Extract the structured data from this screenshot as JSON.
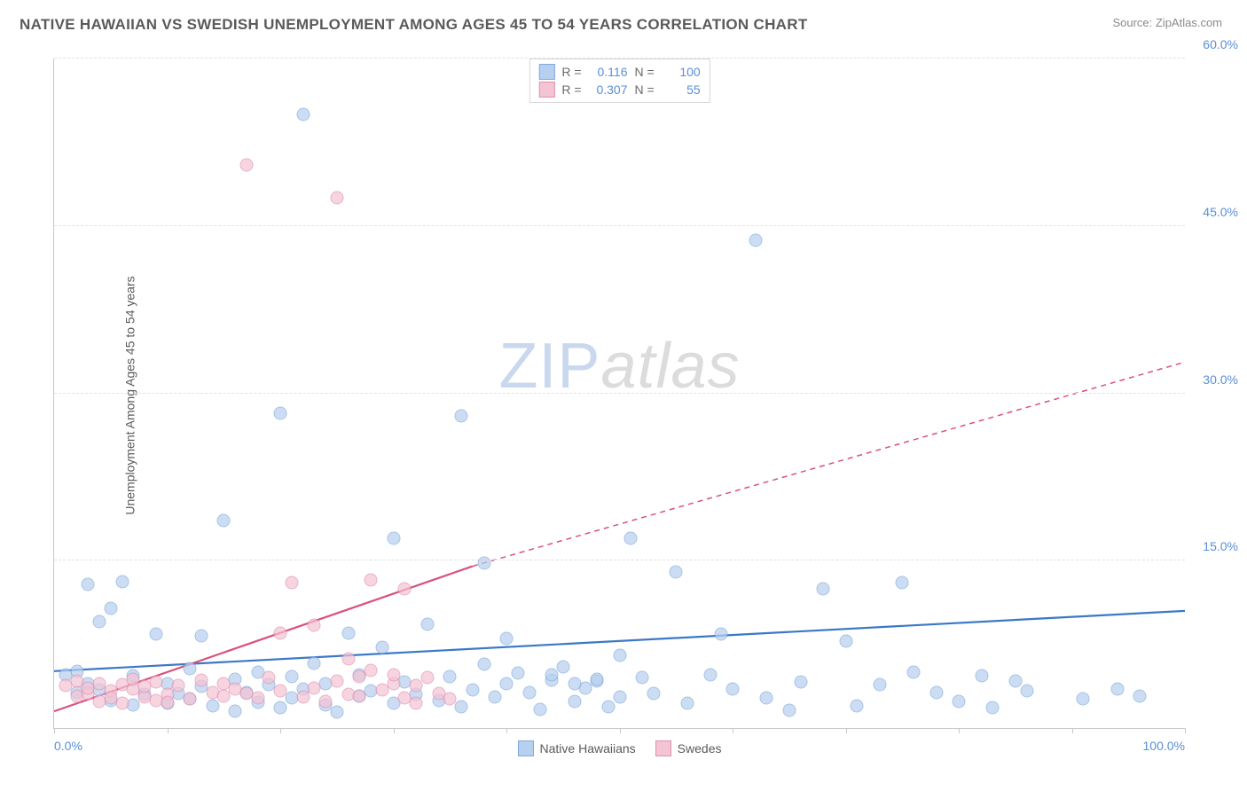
{
  "header": {
    "title": "NATIVE HAWAIIAN VS SWEDISH UNEMPLOYMENT AMONG AGES 45 TO 54 YEARS CORRELATION CHART",
    "source": "Source: ZipAtlas.com"
  },
  "chart": {
    "type": "scatter",
    "y_label": "Unemployment Among Ages 45 to 54 years",
    "xlim": [
      0,
      100
    ],
    "ylim": [
      0,
      60
    ],
    "x_ticks": [
      0,
      10,
      20,
      30,
      40,
      50,
      60,
      70,
      80,
      90,
      100
    ],
    "x_tick_labels": {
      "0": "0.0%",
      "100": "100.0%"
    },
    "y_grid": [
      15,
      30,
      45,
      60
    ],
    "y_tick_labels": [
      "15.0%",
      "30.0%",
      "45.0%",
      "60.0%"
    ],
    "background_color": "#ffffff",
    "grid_color": "#e2e2e2",
    "axis_color": "#c9c9c9",
    "marker_radius": 7.5,
    "marker_opacity": 0.7,
    "series": [
      {
        "name": "Native Hawaiians",
        "fill": "#b7d0ef",
        "stroke": "#7faade",
        "line_color": "#3b78c7",
        "R": "0.116",
        "N": "100",
        "trend": {
          "x1": 0,
          "y1": 5.1,
          "x2": 100,
          "y2": 10.5
        },
        "points": [
          [
            1,
            4.8
          ],
          [
            2,
            3.2
          ],
          [
            2,
            5.1
          ],
          [
            3,
            12.9
          ],
          [
            3,
            4.0
          ],
          [
            4,
            9.5
          ],
          [
            4,
            3.4
          ],
          [
            5,
            10.7
          ],
          [
            5,
            2.5
          ],
          [
            6,
            13.1
          ],
          [
            7,
            4.7
          ],
          [
            7,
            2.1
          ],
          [
            8,
            3.0
          ],
          [
            9,
            8.4
          ],
          [
            10,
            4.0
          ],
          [
            10,
            2.2
          ],
          [
            11,
            3.1
          ],
          [
            12,
            2.6
          ],
          [
            12,
            5.3
          ],
          [
            13,
            8.3
          ],
          [
            13,
            3.7
          ],
          [
            14,
            2.0
          ],
          [
            15,
            18.6
          ],
          [
            16,
            1.5
          ],
          [
            16,
            4.4
          ],
          [
            17,
            3.2
          ],
          [
            18,
            2.3
          ],
          [
            18,
            5.0
          ],
          [
            19,
            3.9
          ],
          [
            20,
            28.2
          ],
          [
            20,
            1.8
          ],
          [
            21,
            4.6
          ],
          [
            21,
            2.7
          ],
          [
            22,
            55.0
          ],
          [
            22,
            3.5
          ],
          [
            23,
            5.8
          ],
          [
            24,
            2.1
          ],
          [
            24,
            4.0
          ],
          [
            25,
            1.4
          ],
          [
            26,
            8.5
          ],
          [
            27,
            2.9
          ],
          [
            27,
            4.8
          ],
          [
            28,
            3.3
          ],
          [
            29,
            7.2
          ],
          [
            30,
            17.0
          ],
          [
            30,
            2.2
          ],
          [
            31,
            4.1
          ],
          [
            32,
            3.0
          ],
          [
            33,
            9.3
          ],
          [
            34,
            2.5
          ],
          [
            35,
            4.6
          ],
          [
            36,
            28.0
          ],
          [
            36,
            1.9
          ],
          [
            37,
            3.4
          ],
          [
            38,
            5.7
          ],
          [
            39,
            2.8
          ],
          [
            40,
            8.0
          ],
          [
            40,
            4.0
          ],
          [
            41,
            4.9
          ],
          [
            42,
            3.2
          ],
          [
            43,
            1.7
          ],
          [
            44,
            4.3
          ],
          [
            45,
            5.5
          ],
          [
            46,
            2.4
          ],
          [
            47,
            3.6
          ],
          [
            48,
            4.2
          ],
          [
            49,
            1.9
          ],
          [
            50,
            2.8
          ],
          [
            51,
            17.0
          ],
          [
            52,
            4.5
          ],
          [
            53,
            3.1
          ],
          [
            55,
            14.0
          ],
          [
            56,
            2.2
          ],
          [
            58,
            4.8
          ],
          [
            59,
            8.4
          ],
          [
            60,
            3.5
          ],
          [
            62,
            43.7
          ],
          [
            63,
            2.7
          ],
          [
            65,
            1.6
          ],
          [
            66,
            4.1
          ],
          [
            68,
            12.5
          ],
          [
            70,
            7.8
          ],
          [
            71,
            2.0
          ],
          [
            73,
            3.9
          ],
          [
            75,
            13.0
          ],
          [
            76,
            5.0
          ],
          [
            78,
            3.2
          ],
          [
            80,
            2.4
          ],
          [
            82,
            4.7
          ],
          [
            83,
            1.8
          ],
          [
            85,
            4.2
          ],
          [
            86,
            3.3
          ],
          [
            91,
            2.6
          ],
          [
            94,
            3.5
          ],
          [
            96,
            2.9
          ],
          [
            38,
            14.8
          ],
          [
            44,
            4.8
          ],
          [
            46,
            4.0
          ],
          [
            48,
            4.4
          ],
          [
            50,
            6.5
          ]
        ]
      },
      {
        "name": "Swedes",
        "fill": "#f3c4d4",
        "stroke": "#e38fb0",
        "line_color": "#d9517f",
        "R": "0.307",
        "N": "55",
        "trend_solid": {
          "x1": 0,
          "y1": 1.5,
          "x2": 37,
          "y2": 14.5
        },
        "trend_dashed": {
          "x1": 37,
          "y1": 14.5,
          "x2": 100,
          "y2": 32.8
        },
        "points": [
          [
            1,
            3.8
          ],
          [
            2,
            2.9
          ],
          [
            2,
            4.2
          ],
          [
            3,
            3.1
          ],
          [
            3,
            3.6
          ],
          [
            4,
            2.4
          ],
          [
            4,
            4.0
          ],
          [
            5,
            3.3
          ],
          [
            5,
            2.7
          ],
          [
            6,
            3.9
          ],
          [
            6,
            2.2
          ],
          [
            7,
            3.5
          ],
          [
            7,
            4.4
          ],
          [
            8,
            2.8
          ],
          [
            8,
            3.7
          ],
          [
            9,
            2.5
          ],
          [
            9,
            4.1
          ],
          [
            10,
            3.0
          ],
          [
            10,
            2.3
          ],
          [
            11,
            3.8
          ],
          [
            12,
            2.6
          ],
          [
            13,
            4.3
          ],
          [
            14,
            3.2
          ],
          [
            15,
            2.9
          ],
          [
            15,
            4.0
          ],
          [
            16,
            3.5
          ],
          [
            17,
            50.5
          ],
          [
            17,
            3.1
          ],
          [
            18,
            2.7
          ],
          [
            19,
            4.5
          ],
          [
            20,
            3.3
          ],
          [
            20,
            8.5
          ],
          [
            21,
            13.0
          ],
          [
            22,
            2.8
          ],
          [
            23,
            9.2
          ],
          [
            23,
            3.6
          ],
          [
            24,
            2.4
          ],
          [
            25,
            47.5
          ],
          [
            25,
            4.2
          ],
          [
            26,
            3.0
          ],
          [
            27,
            2.9
          ],
          [
            28,
            5.2
          ],
          [
            28,
            13.3
          ],
          [
            29,
            3.4
          ],
          [
            30,
            4.0
          ],
          [
            31,
            12.5
          ],
          [
            31,
            2.7
          ],
          [
            32,
            3.8
          ],
          [
            33,
            4.5
          ],
          [
            34,
            3.1
          ],
          [
            35,
            2.6
          ],
          [
            30,
            4.8
          ],
          [
            32,
            2.2
          ],
          [
            27,
            4.6
          ],
          [
            26,
            6.2
          ]
        ]
      }
    ],
    "legend_top": {
      "R_label": "R =",
      "N_label": "N ="
    },
    "legend_bottom": [
      {
        "label": "Native Hawaiians",
        "fill": "#b7d0ef",
        "stroke": "#7faade"
      },
      {
        "label": "Swedes",
        "fill": "#f3c4d4",
        "stroke": "#e38fb0"
      }
    ],
    "watermark": {
      "part1": "ZIP",
      "part2": "atlas"
    }
  }
}
